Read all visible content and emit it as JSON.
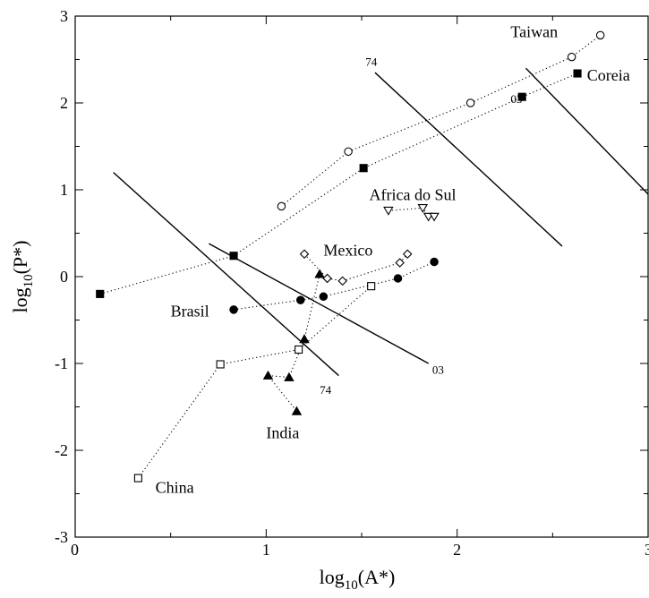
{
  "chart_data": {
    "type": "scatter",
    "title": "",
    "xlabel_base": "log",
    "xlabel_sub": "10",
    "xlabel_tail": "(A*)",
    "ylabel_base": "log",
    "ylabel_sub": "10",
    "ylabel_tail": "(P*)",
    "xlim": [
      0,
      3
    ],
    "ylim": [
      -3,
      3
    ],
    "x_ticks": [
      {
        "value": 0,
        "label": "0"
      },
      {
        "value": 1,
        "label": "1"
      },
      {
        "value": 2,
        "label": "2"
      },
      {
        "value": 3,
        "label": "3"
      }
    ],
    "y_ticks": [
      {
        "value": -3,
        "label": "-3"
      },
      {
        "value": -2,
        "label": "-2"
      },
      {
        "value": -1,
        "label": "-1"
      },
      {
        "value": 0,
        "label": "0"
      },
      {
        "value": 1,
        "label": "1"
      },
      {
        "value": 2,
        "label": "2"
      },
      {
        "value": 3,
        "label": "3"
      }
    ],
    "grid": false,
    "series": [
      {
        "name": "Taiwan",
        "marker": "circle-open",
        "points": [
          [
            1.08,
            0.81
          ],
          [
            1.43,
            1.44
          ],
          [
            2.07,
            2.0
          ],
          [
            2.6,
            2.53
          ],
          [
            2.75,
            2.78
          ]
        ],
        "label": {
          "text": "Taiwan",
          "x": 2.28,
          "y": 2.76
        }
      },
      {
        "name": "Coreia",
        "marker": "square-filled",
        "points": [
          [
            0.13,
            -0.2
          ],
          [
            0.83,
            0.24
          ],
          [
            1.51,
            1.25
          ],
          [
            2.34,
            2.07
          ],
          [
            2.63,
            2.34
          ]
        ],
        "label": {
          "text": "Coreia",
          "x": 2.68,
          "y": 2.26
        }
      },
      {
        "name": "Africa do Sul",
        "marker": "triangle-down-open",
        "points": [
          [
            1.64,
            0.76
          ],
          [
            1.82,
            0.79
          ],
          [
            1.85,
            0.69
          ],
          [
            1.88,
            0.69
          ]
        ],
        "label": {
          "text": "Africa do Sul",
          "x": 1.54,
          "y": 0.88
        }
      },
      {
        "name": "Mexico",
        "marker": "diamond-open",
        "points": [
          [
            1.2,
            0.26
          ],
          [
            1.32,
            -0.02
          ],
          [
            1.4,
            -0.05
          ],
          [
            1.7,
            0.16
          ],
          [
            1.74,
            0.26
          ]
        ],
        "label": {
          "text": "Mexico",
          "x": 1.3,
          "y": 0.24
        }
      },
      {
        "name": "Brasil",
        "marker": "circle-filled",
        "points": [
          [
            0.83,
            -0.38
          ],
          [
            1.18,
            -0.27
          ],
          [
            1.3,
            -0.23
          ],
          [
            1.69,
            -0.02
          ],
          [
            1.88,
            0.17
          ]
        ],
        "label": {
          "text": "Brasil",
          "x": 0.5,
          "y": -0.46
        }
      },
      {
        "name": "India",
        "marker": "triangle-up-filled",
        "points": [
          [
            1.28,
            0.03
          ],
          [
            1.2,
            -0.72
          ],
          [
            1.12,
            -1.16
          ],
          [
            1.01,
            -1.14
          ],
          [
            1.16,
            -1.55
          ]
        ],
        "label": {
          "text": "India",
          "x": 1.0,
          "y": -1.86
        }
      },
      {
        "name": "China",
        "marker": "square-open",
        "points": [
          [
            0.33,
            -2.32
          ],
          [
            0.76,
            -1.01
          ],
          [
            1.17,
            -0.84
          ],
          [
            1.55,
            -0.11
          ]
        ],
        "label": {
          "text": "China",
          "x": 0.42,
          "y": -2.49
        }
      }
    ],
    "reference_lines": [
      {
        "from": [
          0.2,
          1.2
        ],
        "to": [
          1.38,
          -1.14
        ],
        "label": "74",
        "label_x": 1.28,
        "label_y": -1.35
      },
      {
        "from": [
          0.7,
          0.38
        ],
        "to": [
          1.85,
          -1.0
        ],
        "label": "03",
        "label_x": 1.87,
        "label_y": -1.12
      },
      {
        "from": [
          1.57,
          2.35
        ],
        "to": [
          2.55,
          0.35
        ],
        "label": "74",
        "label_x": 1.52,
        "label_y": 2.43
      },
      {
        "from": [
          2.36,
          2.4
        ],
        "to": [
          3.0,
          0.95
        ],
        "label": "03",
        "label_x": 2.28,
        "label_y": 2.0
      }
    ]
  }
}
